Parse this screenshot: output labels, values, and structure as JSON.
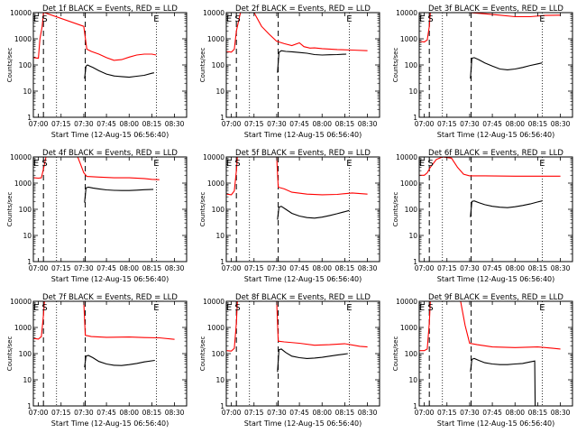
{
  "figure": {
    "xlabel": "Start Time (12-Aug-15 06:56:40)",
    "ylabel": "Counts/sec",
    "x_tick_labels": [
      "07:00",
      "07:15",
      "07:30",
      "07:45",
      "08:00",
      "08:15",
      "08:30"
    ],
    "y_tick_labels": [
      "1",
      "10",
      "100",
      "1000",
      "10000"
    ]
  },
  "chart_data": [
    {
      "type": "line",
      "title": "Det 1f BLACK = Events, RED = LLD",
      "xlabel": "Start Time (12-Aug-15 06:56:40)",
      "ylabel": "Counts/sec",
      "xlim": [
        "06:56:40",
        "08:38:00"
      ],
      "ylim": [
        1,
        10000
      ],
      "yscale": "log",
      "grid": false,
      "markers": [
        {
          "time": "06:58:30",
          "label": "E"
        },
        {
          "time": "07:04:10",
          "label": "S"
        },
        {
          "time": "08:18:00",
          "label": "E"
        }
      ],
      "dashed_lines": [
        "07:03:20",
        "07:31:00"
      ],
      "dotted_lines": [
        "07:12:00",
        "08:18:00"
      ],
      "series": [
        {
          "color": "#ff0000",
          "x": [
            "06:57:00",
            "07:00:00",
            "07:01:00",
            "07:02:30",
            "07:03:20",
            "07:04:00",
            "07:30:00",
            "07:32:00",
            "07:35:00",
            "07:40:00",
            "07:45:00",
            "07:50:00",
            "07:55:00",
            "08:00:00",
            "08:05:00",
            "08:10:00",
            "08:15:00",
            "08:18:00"
          ],
          "values": [
            190,
            180,
            1000,
            3000,
            10000,
            10000,
            3000,
            400,
            330,
            260,
            190,
            150,
            160,
            200,
            240,
            260,
            260,
            240
          ]
        },
        {
          "color": "#000000",
          "x": [
            "07:30:30",
            "07:31:30",
            "07:32:30",
            "07:34:00",
            "07:36:00",
            "07:40:00",
            "07:45:00",
            "07:50:00",
            "07:55:00",
            "08:00:00",
            "08:05:00",
            "08:10:00",
            "08:15:00",
            "08:16:30"
          ],
          "values": [
            30,
            90,
            100,
            90,
            80,
            60,
            45,
            38,
            36,
            34,
            37,
            40,
            48,
            50
          ]
        }
      ]
    },
    {
      "type": "line",
      "title": "Det 2f BLACK = Events, RED = LLD",
      "xlabel": "Start Time (12-Aug-15 06:56:40)",
      "ylabel": "Counts/sec",
      "xlim": [
        "06:56:40",
        "08:38:00"
      ],
      "ylim": [
        1,
        10000
      ],
      "yscale": "log",
      "grid": false,
      "markers": [
        {
          "time": "06:58:30",
          "label": "E"
        },
        {
          "time": "07:04:10",
          "label": "S"
        },
        {
          "time": "08:18:00",
          "label": "E"
        }
      ],
      "dashed_lines": [
        "07:03:20",
        "07:31:00"
      ],
      "dotted_lines": [
        "07:12:00",
        "08:18:00"
      ],
      "series": [
        {
          "color": "#ff0000",
          "x": [
            "06:57:00",
            "07:00:00",
            "07:02:00",
            "07:03:20",
            "07:06:00",
            "07:15:00",
            "07:20:00",
            "07:25:00",
            "07:30:00",
            "07:35:00",
            "07:40:00",
            "07:45:00",
            "07:48:00",
            "07:52:00",
            "07:55:00",
            "08:00:00",
            "08:10:00",
            "08:20:00",
            "08:30:00"
          ],
          "values": [
            330,
            310,
            400,
            2000,
            10000,
            10000,
            3000,
            1500,
            800,
            650,
            550,
            700,
            500,
            440,
            450,
            420,
            390,
            370,
            350
          ]
        },
        {
          "color": "#000000",
          "x": [
            "07:30:30",
            "07:31:30",
            "07:33:00",
            "07:36:00",
            "07:40:00",
            "07:45:00",
            "07:50:00",
            "07:55:00",
            "08:00:00",
            "08:05:00",
            "08:10:00",
            "08:16:00"
          ],
          "values": [
            50,
            300,
            350,
            330,
            320,
            300,
            280,
            250,
            240,
            245,
            250,
            260
          ]
        }
      ]
    },
    {
      "type": "line",
      "title": "Det 3f BLACK = Events, RED = LLD",
      "xlabel": "Start Time (12-Aug-15 06:56:40)",
      "ylabel": "Counts/sec",
      "xlim": [
        "06:56:40",
        "08:38:00"
      ],
      "ylim": [
        1,
        10000
      ],
      "yscale": "log",
      "grid": false,
      "markers": [
        {
          "time": "06:58:30",
          "label": "E"
        },
        {
          "time": "07:04:10",
          "label": "S"
        },
        {
          "time": "08:18:00",
          "label": "E"
        }
      ],
      "dashed_lines": [
        "07:03:20",
        "07:31:00"
      ],
      "dotted_lines": [
        "07:12:00",
        "08:18:00"
      ],
      "series": [
        {
          "color": "#ff0000",
          "x": [
            "06:57:00",
            "07:00:00",
            "07:02:00",
            "07:03:20",
            "07:04:00",
            "07:30:00",
            "07:40:00",
            "07:50:00",
            "08:00:00",
            "08:10:00",
            "08:20:00",
            "08:30:00"
          ],
          "values": [
            800,
            760,
            900,
            3000,
            10000,
            10000,
            9000,
            8000,
            7000,
            7000,
            7800,
            8000
          ]
        },
        {
          "color": "#000000",
          "x": [
            "07:30:30",
            "07:31:30",
            "07:33:00",
            "07:36:00",
            "07:40:00",
            "07:45:00",
            "07:50:00",
            "07:55:00",
            "08:00:00",
            "08:05:00",
            "08:10:00",
            "08:15:00",
            "08:18:00"
          ],
          "values": [
            30,
            180,
            190,
            160,
            120,
            90,
            70,
            65,
            70,
            80,
            95,
            110,
            120
          ]
        }
      ]
    },
    {
      "type": "line",
      "title": "Det 4f BLACK = Events, RED = LLD",
      "xlabel": "Start Time (12-Aug-15 06:56:40)",
      "ylabel": "Counts/sec",
      "xlim": [
        "06:56:40",
        "08:38:00"
      ],
      "ylim": [
        1,
        10000
      ],
      "yscale": "log",
      "grid": false,
      "markers": [
        {
          "time": "06:58:30",
          "label": "E"
        },
        {
          "time": "07:04:10",
          "label": "S"
        },
        {
          "time": "08:18:00",
          "label": "E"
        }
      ],
      "dashed_lines": [
        "07:03:20",
        "07:31:00"
      ],
      "dotted_lines": [
        "07:12:00",
        "08:18:00"
      ],
      "series": [
        {
          "color": "#ff0000",
          "x": [
            "06:57:00",
            "07:00:00",
            "07:02:00",
            "07:03:20",
            "07:05:00",
            "07:26:00",
            "07:28:00",
            "07:30:00",
            "07:32:00",
            "07:40:00",
            "07:50:00",
            "08:00:00",
            "08:10:00",
            "08:15:00",
            "08:20:00"
          ],
          "values": [
            1600,
            1550,
            1600,
            3500,
            10000,
            10000,
            5000,
            2500,
            1800,
            1700,
            1600,
            1600,
            1500,
            1400,
            1350
          ]
        },
        {
          "color": "#000000",
          "x": [
            "07:30:30",
            "07:31:30",
            "07:33:00",
            "07:36:00",
            "07:40:00",
            "07:45:00",
            "07:50:00",
            "07:55:00",
            "08:00:00",
            "08:05:00",
            "08:10:00",
            "08:16:00"
          ],
          "values": [
            180,
            650,
            700,
            650,
            600,
            550,
            530,
            520,
            520,
            540,
            560,
            580
          ]
        }
      ]
    },
    {
      "type": "line",
      "title": "Det 5f BLACK = Events, RED = LLD",
      "xlabel": "Start Time (12-Aug-15 06:56:40)",
      "ylabel": "Counts/sec",
      "xlim": [
        "06:56:40",
        "08:38:00"
      ],
      "ylim": [
        1,
        10000
      ],
      "yscale": "log",
      "grid": false,
      "markers": [
        {
          "time": "06:58:30",
          "label": "E"
        },
        {
          "time": "07:04:10",
          "label": "S"
        },
        {
          "time": "08:18:00",
          "label": "E"
        }
      ],
      "dashed_lines": [
        "07:03:20",
        "07:31:00"
      ],
      "dotted_lines": [
        "07:12:00",
        "08:18:00"
      ],
      "series": [
        {
          "color": "#ff0000",
          "x": [
            "06:57:00",
            "07:00:00",
            "07:02:00",
            "07:03:20",
            "07:04:00",
            "07:30:00",
            "07:31:00",
            "07:35:00",
            "07:40:00",
            "07:50:00",
            "08:00:00",
            "08:10:00",
            "08:20:00",
            "08:30:00"
          ],
          "values": [
            380,
            360,
            500,
            3000,
            10000,
            10000,
            700,
            600,
            450,
            380,
            360,
            370,
            420,
            380
          ]
        },
        {
          "color": "#000000",
          "x": [
            "07:30:30",
            "07:31:30",
            "07:33:00",
            "07:36:00",
            "07:40:00",
            "07:45:00",
            "07:50:00",
            "07:55:00",
            "08:00:00",
            "08:05:00",
            "08:10:00",
            "08:18:00"
          ],
          "values": [
            40,
            120,
            130,
            100,
            70,
            55,
            48,
            46,
            50,
            58,
            68,
            90
          ]
        }
      ]
    },
    {
      "type": "line",
      "title": "Det 6f BLACK = Events, RED = LLD",
      "xlabel": "Start Time (12-Aug-15 06:56:40)",
      "ylabel": "Counts/sec",
      "xlim": [
        "06:56:40",
        "08:38:00"
      ],
      "ylim": [
        1,
        10000
      ],
      "yscale": "log",
      "grid": false,
      "markers": [
        {
          "time": "06:58:30",
          "label": "E"
        },
        {
          "time": "07:04:10",
          "label": "S"
        },
        {
          "time": "08:18:00",
          "label": "E"
        }
      ],
      "dashed_lines": [
        "07:03:20",
        "07:31:00"
      ],
      "dotted_lines": [
        "07:12:00",
        "08:18:00"
      ],
      "series": [
        {
          "color": "#ff0000",
          "x": [
            "06:57:00",
            "07:00:00",
            "07:02:00",
            "07:04:00",
            "07:08:00",
            "07:12:00",
            "07:18:00",
            "07:22:00",
            "07:26:00",
            "07:30:00",
            "07:40:00",
            "08:00:00",
            "08:20:00",
            "08:30:00"
          ],
          "values": [
            2000,
            2000,
            2500,
            4000,
            8000,
            10000,
            9000,
            4000,
            2200,
            1900,
            1900,
            1850,
            1850,
            1850
          ]
        },
        {
          "color": "#000000",
          "x": [
            "07:30:30",
            "07:31:30",
            "07:33:00",
            "07:36:00",
            "07:40:00",
            "07:45:00",
            "07:50:00",
            "07:55:00",
            "08:00:00",
            "08:05:00",
            "08:10:00",
            "08:15:00",
            "08:18:00"
          ],
          "values": [
            50,
            200,
            210,
            180,
            150,
            130,
            120,
            115,
            125,
            140,
            160,
            190,
            210
          ]
        }
      ]
    },
    {
      "type": "line",
      "title": "Det 7f BLACK = Events, RED = LLD",
      "xlabel": "Start Time (12-Aug-15 06:56:40)",
      "ylabel": "Counts/sec",
      "xlim": [
        "06:56:40",
        "08:38:00"
      ],
      "ylim": [
        1,
        10000
      ],
      "yscale": "log",
      "grid": false,
      "markers": [
        {
          "time": "06:58:30",
          "label": "E"
        },
        {
          "time": "07:04:10",
          "label": "S"
        },
        {
          "time": "08:18:00",
          "label": "E"
        }
      ],
      "dashed_lines": [
        "07:03:20",
        "07:31:00"
      ],
      "dotted_lines": [
        "07:12:00",
        "08:18:00"
      ],
      "series": [
        {
          "color": "#ff0000",
          "x": [
            "06:57:00",
            "07:00:00",
            "07:02:00",
            "07:03:20",
            "07:04:00",
            "07:30:00",
            "07:31:00",
            "07:35:00",
            "07:45:00",
            "08:00:00",
            "08:10:00",
            "08:20:00",
            "08:30:00"
          ],
          "values": [
            380,
            360,
            450,
            3000,
            10000,
            10000,
            500,
            450,
            420,
            430,
            410,
            400,
            350
          ]
        },
        {
          "color": "#000000",
          "x": [
            "07:30:30",
            "07:31:30",
            "07:33:00",
            "07:36:00",
            "07:40:00",
            "07:45:00",
            "07:50:00",
            "07:55:00",
            "08:00:00",
            "08:05:00",
            "08:10:00",
            "08:17:00"
          ],
          "values": [
            30,
            80,
            85,
            70,
            50,
            40,
            36,
            35,
            38,
            42,
            48,
            55
          ]
        }
      ]
    },
    {
      "type": "line",
      "title": "Det 8f BLACK = Events, RED = LLD",
      "xlabel": "Start Time (12-Aug-15 06:56:40)",
      "ylabel": "Counts/sec",
      "xlim": [
        "06:56:40",
        "08:38:00"
      ],
      "ylim": [
        1,
        10000
      ],
      "yscale": "log",
      "grid": false,
      "markers": [
        {
          "time": "06:58:30",
          "label": "E"
        },
        {
          "time": "07:04:10",
          "label": "S"
        },
        {
          "time": "08:18:00",
          "label": "E"
        }
      ],
      "dashed_lines": [
        "07:03:20",
        "07:31:00"
      ],
      "dotted_lines": [
        "07:12:00",
        "08:18:00"
      ],
      "series": [
        {
          "color": "#ff0000",
          "x": [
            "06:57:00",
            "07:00:00",
            "07:02:00",
            "07:03:20",
            "07:04:00",
            "07:30:00",
            "07:31:00",
            "07:35:00",
            "07:45:00",
            "07:55:00",
            "08:05:00",
            "08:15:00",
            "08:25:00",
            "08:30:00"
          ],
          "values": [
            130,
            125,
            160,
            1500,
            10000,
            10000,
            300,
            280,
            250,
            210,
            220,
            240,
            190,
            180
          ]
        },
        {
          "color": "#000000",
          "x": [
            "07:30:30",
            "07:31:30",
            "07:33:00",
            "07:36:00",
            "07:40:00",
            "07:45:00",
            "07:50:00",
            "07:55:00",
            "08:00:00",
            "08:05:00",
            "08:10:00",
            "08:17:00"
          ],
          "values": [
            20,
            140,
            150,
            110,
            80,
            70,
            65,
            68,
            72,
            80,
            88,
            100
          ]
        }
      ]
    },
    {
      "type": "line",
      "title": "Det 9f BLACK = Events, RED = LLD",
      "xlabel": "Start Time (12-Aug-15 06:56:40)",
      "ylabel": "Counts/sec",
      "xlim": [
        "06:56:40",
        "08:38:00"
      ],
      "ylim": [
        1,
        10000
      ],
      "yscale": "log",
      "grid": false,
      "markers": [
        {
          "time": "06:58:30",
          "label": "E"
        },
        {
          "time": "07:04:10",
          "label": "S"
        },
        {
          "time": "08:18:00",
          "label": "E"
        }
      ],
      "dashed_lines": [
        "07:03:20",
        "07:31:00"
      ],
      "dotted_lines": [
        "07:12:00",
        "08:18:00"
      ],
      "series": [
        {
          "color": "#ff0000",
          "x": [
            "06:57:00",
            "07:00:00",
            "07:02:00",
            "07:03:20",
            "07:04:00",
            "07:24:00",
            "07:27:00",
            "07:30:00",
            "07:35:00",
            "07:45:00",
            "08:00:00",
            "08:15:00",
            "08:25:00",
            "08:30:00"
          ],
          "values": [
            130,
            130,
            150,
            1500,
            10000,
            10000,
            1200,
            250,
            220,
            180,
            170,
            180,
            160,
            150
          ]
        },
        {
          "color": "#000000",
          "x": [
            "07:30:30",
            "07:31:30",
            "07:33:00",
            "07:36:00",
            "07:40:00",
            "07:45:00",
            "07:50:00",
            "07:55:00",
            "08:00:00",
            "08:05:00",
            "08:10:00",
            "08:13:00",
            "08:13:20",
            "08:14:00"
          ],
          "values": [
            20,
            60,
            65,
            55,
            45,
            40,
            38,
            38,
            40,
            42,
            48,
            52,
            1,
            1
          ]
        }
      ]
    }
  ]
}
